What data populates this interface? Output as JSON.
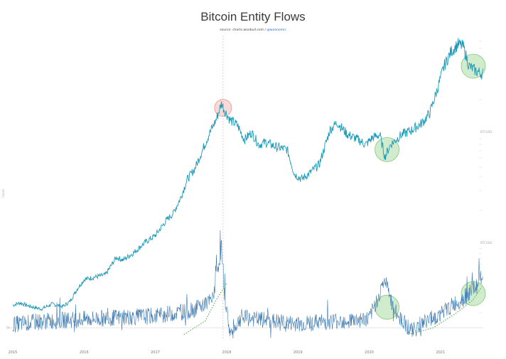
{
  "chart_data": {
    "type": "line",
    "title": "Bitcoin Entity Flows",
    "subtitle_source": "source: charts.woobull.com",
    "subtitle_sep": " / ",
    "subtitle_handle": "@woonomic",
    "ylabel": "Count",
    "x_tick_labels": [
      "2015",
      "2016",
      "2017",
      "2018",
      "2019",
      "2020",
      "2021"
    ],
    "x_range": [
      2015.0,
      2021.6
    ],
    "upper_axis_label": "BTCUSD",
    "lower_axis_label": "BTCUSD",
    "zero_label": "0k",
    "upper_series": {
      "name": "",
      "color": "#1a9ab8",
      "anchors": [
        [
          2015.0,
          0.045
        ],
        [
          2015.1,
          0.055
        ],
        [
          2015.25,
          0.04
        ],
        [
          2015.4,
          0.03
        ],
        [
          2015.55,
          0.05
        ],
        [
          2015.7,
          0.04
        ],
        [
          2015.8,
          0.06
        ],
        [
          2015.9,
          0.11
        ],
        [
          2016.0,
          0.15
        ],
        [
          2016.15,
          0.16
        ],
        [
          2016.3,
          0.17
        ],
        [
          2016.45,
          0.24
        ],
        [
          2016.55,
          0.23
        ],
        [
          2016.7,
          0.26
        ],
        [
          2016.85,
          0.3
        ],
        [
          2017.0,
          0.33
        ],
        [
          2017.15,
          0.39
        ],
        [
          2017.25,
          0.42
        ],
        [
          2017.35,
          0.48
        ],
        [
          2017.45,
          0.56
        ],
        [
          2017.55,
          0.6
        ],
        [
          2017.65,
          0.67
        ],
        [
          2017.75,
          0.74
        ],
        [
          2017.85,
          0.8
        ],
        [
          2017.93,
          0.87
        ],
        [
          2017.97,
          0.84
        ],
        [
          2018.05,
          0.8
        ],
        [
          2018.15,
          0.78
        ],
        [
          2018.25,
          0.72
        ],
        [
          2018.35,
          0.75
        ],
        [
          2018.45,
          0.7
        ],
        [
          2018.55,
          0.71
        ],
        [
          2018.7,
          0.69
        ],
        [
          2018.85,
          0.68
        ],
        [
          2018.95,
          0.58
        ],
        [
          2019.05,
          0.56
        ],
        [
          2019.15,
          0.58
        ],
        [
          2019.3,
          0.62
        ],
        [
          2019.45,
          0.76
        ],
        [
          2019.55,
          0.79
        ],
        [
          2019.7,
          0.74
        ],
        [
          2019.85,
          0.72
        ],
        [
          2019.95,
          0.7
        ],
        [
          2020.05,
          0.73
        ],
        [
          2020.15,
          0.74
        ],
        [
          2020.22,
          0.65
        ],
        [
          2020.3,
          0.7
        ],
        [
          2020.45,
          0.74
        ],
        [
          2020.6,
          0.76
        ],
        [
          2020.75,
          0.79
        ],
        [
          2020.85,
          0.83
        ],
        [
          2020.95,
          0.92
        ],
        [
          2021.05,
          1.02
        ],
        [
          2021.15,
          1.08
        ],
        [
          2021.25,
          1.11
        ],
        [
          2021.32,
          1.1
        ],
        [
          2021.4,
          1.02
        ],
        [
          2021.5,
          1.0
        ],
        [
          2021.58,
          0.99
        ]
      ]
    },
    "lower_series": {
      "name": "",
      "color": "#3b78b0",
      "anchors": [
        [
          2015.0,
          0.01
        ],
        [
          2015.5,
          0.02
        ],
        [
          2016.0,
          0.025
        ],
        [
          2016.5,
          0.03
        ],
        [
          2017.0,
          0.035
        ],
        [
          2017.5,
          0.05
        ],
        [
          2017.8,
          0.08
        ],
        [
          2017.93,
          0.24
        ],
        [
          2017.97,
          0.1
        ],
        [
          2018.05,
          -0.02
        ],
        [
          2018.2,
          0.03
        ],
        [
          2018.6,
          0.02
        ],
        [
          2019.0,
          0.01
        ],
        [
          2019.5,
          0.02
        ],
        [
          2020.0,
          0.025
        ],
        [
          2020.22,
          0.14
        ],
        [
          2020.35,
          0.05
        ],
        [
          2020.6,
          -0.01
        ],
        [
          2020.8,
          0.02
        ],
        [
          2021.0,
          0.04
        ],
        [
          2021.2,
          0.07
        ],
        [
          2021.35,
          0.09
        ],
        [
          2021.5,
          0.12
        ],
        [
          2021.58,
          0.15
        ]
      ]
    },
    "trend_curves": [
      {
        "color": "#4caf50",
        "points": [
          [
            2017.4,
            0.0
          ],
          [
            2017.7,
            0.04
          ],
          [
            2017.85,
            0.1
          ],
          [
            2018.0,
            0.15
          ]
        ]
      },
      {
        "color": "#4caf50",
        "points": [
          [
            2020.55,
            0.0
          ],
          [
            2020.9,
            0.02
          ],
          [
            2021.2,
            0.06
          ],
          [
            2021.45,
            0.1
          ],
          [
            2021.58,
            0.14
          ]
        ]
      }
    ],
    "highlights": [
      {
        "x": 2017.95,
        "panel": "upper",
        "level": 0.85,
        "color": "red"
      },
      {
        "x": 2020.25,
        "panel": "upper",
        "level": 0.68,
        "color": "green"
      },
      {
        "x": 2021.46,
        "panel": "upper",
        "level": 1.02,
        "color": "green"
      },
      {
        "x": 2020.25,
        "panel": "lower",
        "level": 0.06,
        "color": "green"
      },
      {
        "x": 2021.46,
        "panel": "lower",
        "level": 0.1,
        "color": "green"
      }
    ],
    "vertical_marker_x": 2017.95,
    "grid": false,
    "legend": "none"
  }
}
